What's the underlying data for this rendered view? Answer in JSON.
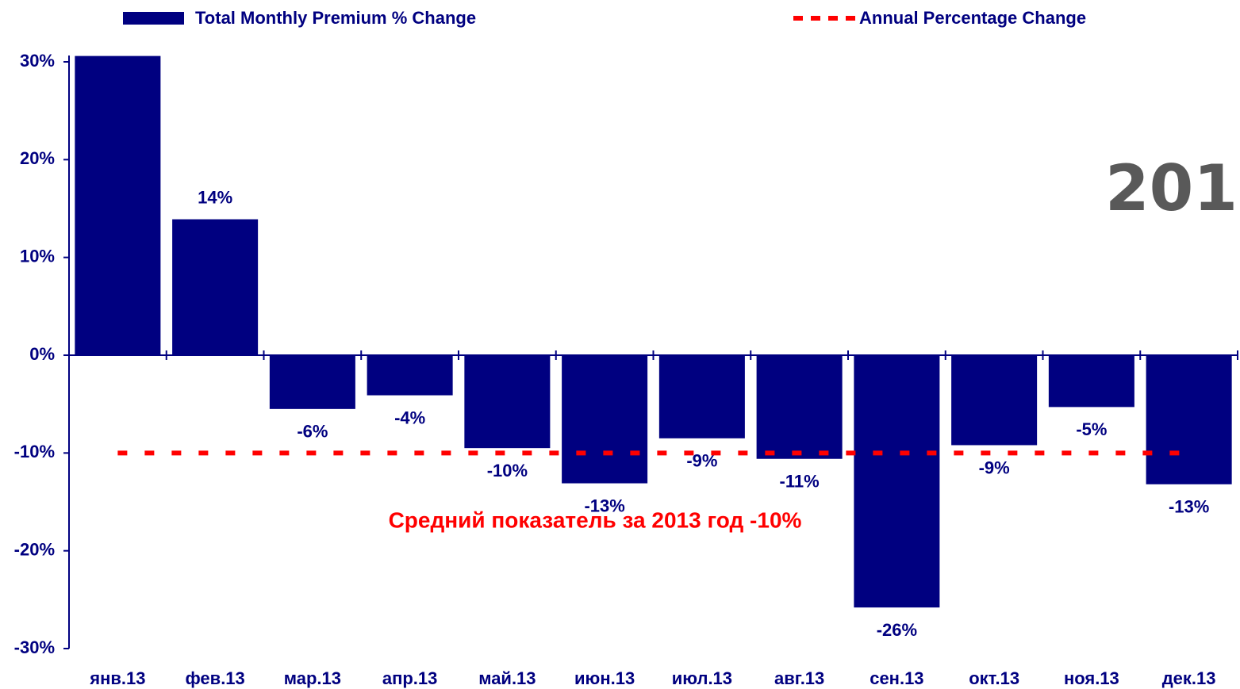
{
  "chart_data": {
    "type": "bar",
    "categories": [
      "янв.13",
      "фев.13",
      "мар.13",
      "апр.13",
      "май.13",
      "июн.13",
      "июл.13",
      "авг.13",
      "сен.13",
      "окт.13",
      "ноя.13",
      "дек.13"
    ],
    "series": [
      {
        "name": "Total Monthly Premium % Change",
        "color": "#000080",
        "values": [
          30.6,
          13.9,
          -5.5,
          -4.1,
          -9.5,
          -13.1,
          -8.5,
          -10.6,
          -25.8,
          -9.2,
          -5.3,
          -13.2
        ],
        "value_labels": [
          null,
          "14%",
          "-6%",
          "-4%",
          "-10%",
          "-13%",
          "-9%",
          "-11%",
          "-26%",
          "-9%",
          "-5%",
          "-13%"
        ]
      }
    ],
    "reference_line": {
      "name": "Annual Percentage Change",
      "color": "#ff0000",
      "value": -10
    },
    "annotation": "Средний показатель за 2013 год -10%",
    "corner_text": "201",
    "ylim": [
      -30,
      30
    ],
    "yticks": [
      {
        "value": 30,
        "label": "30%"
      },
      {
        "value": 20,
        "label": "20%"
      },
      {
        "value": 10,
        "label": "10%"
      },
      {
        "value": 0,
        "label": "0%"
      },
      {
        "value": -10,
        "label": "-10%"
      },
      {
        "value": -20,
        "label": "-20%"
      },
      {
        "value": -30,
        "label": "-30%"
      }
    ],
    "grid": false
  }
}
